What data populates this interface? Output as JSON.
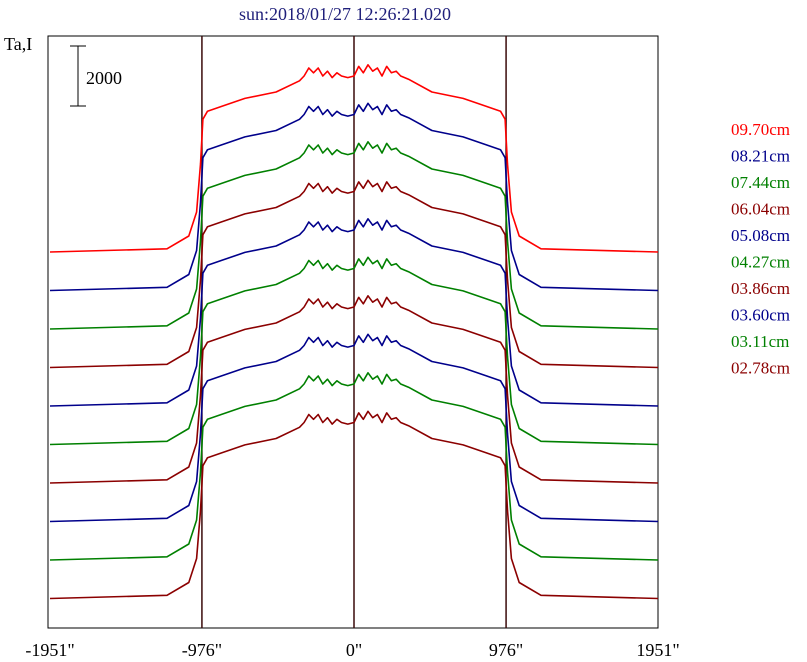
{
  "chart_data": {
    "type": "line",
    "title": "sun:2018/01/27 12:26:21.020",
    "ylabel": "Ta,I",
    "scale_bar_label": "2000",
    "x_ticks": [
      "-1951\"",
      "-976\"",
      "0\"",
      "976\"",
      "1951\""
    ],
    "x_tick_values": [
      -1951,
      -976,
      0,
      976,
      1951
    ],
    "xlim": [
      -1951,
      1951
    ],
    "limb_markers": [
      -976,
      0,
      976
    ],
    "x": [
      -1951,
      -1200,
      -1060,
      -1010,
      -985,
      -970,
      -940,
      -850,
      -700,
      -500,
      -350,
      -320,
      -290,
      -260,
      -230,
      -200,
      -170,
      -140,
      -110,
      -80,
      -40,
      0,
      30,
      60,
      90,
      120,
      150,
      180,
      210,
      240,
      270,
      300,
      350,
      500,
      700,
      850,
      940,
      970,
      985,
      1010,
      1060,
      1200,
      1951
    ],
    "profile_shape": [
      0,
      0.02,
      0.1,
      0.25,
      0.55,
      0.83,
      0.88,
      0.91,
      0.96,
      1.0,
      1.07,
      1.1,
      1.15,
      1.12,
      1.15,
      1.1,
      1.13,
      1.09,
      1.12,
      1.1,
      1.09,
      1.1,
      1.16,
      1.12,
      1.17,
      1.13,
      1.15,
      1.1,
      1.16,
      1.12,
      1.13,
      1.1,
      1.08,
      1.0,
      0.96,
      0.91,
      0.88,
      0.83,
      0.55,
      0.25,
      0.1,
      0.02,
      0
    ],
    "series": [
      {
        "name": "09.70cm",
        "color": "#ff0000",
        "baseline": 0
      },
      {
        "name": "08.21cm",
        "color": "#00008b",
        "baseline": -1
      },
      {
        "name": "07.44cm",
        "color": "#008000",
        "baseline": -2
      },
      {
        "name": "06.04cm",
        "color": "#8b0000",
        "baseline": -3
      },
      {
        "name": "05.08cm",
        "color": "#00008b",
        "baseline": -4
      },
      {
        "name": "04.27cm",
        "color": "#008000",
        "baseline": -5
      },
      {
        "name": "03.86cm",
        "color": "#8b0000",
        "baseline": -6
      },
      {
        "name": "03.60cm",
        "color": "#00008b",
        "baseline": -7
      },
      {
        "name": "03.11cm",
        "color": "#008000",
        "baseline": -8
      },
      {
        "name": "02.78cm",
        "color": "#8b0000",
        "baseline": -9
      }
    ],
    "grid": false
  }
}
